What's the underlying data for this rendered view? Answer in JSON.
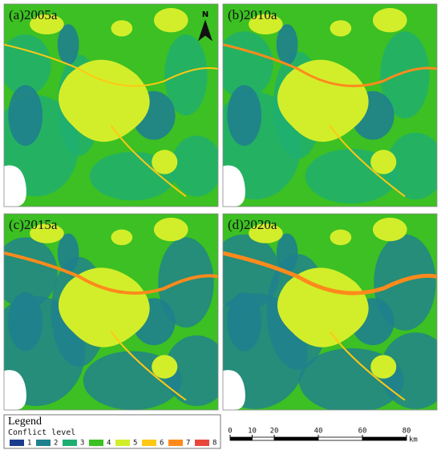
{
  "panels": [
    {
      "label": "(a)2005a"
    },
    {
      "label": "(b)2010a"
    },
    {
      "label": "(c)2015a"
    },
    {
      "label": "(d)2020a"
    }
  ],
  "north": "N",
  "legend": {
    "title": "Legend",
    "subtitle": "Conflict level",
    "items": [
      {
        "label": "1",
        "color": "#1b3b8c"
      },
      {
        "label": "2",
        "color": "#1f7f8e"
      },
      {
        "label": "3",
        "color": "#1eae72"
      },
      {
        "label": "4",
        "color": "#3cc023"
      },
      {
        "label": "5",
        "color": "#d2ee2a"
      },
      {
        "label": "6",
        "color": "#ffc814"
      },
      {
        "label": "7",
        "color": "#ff8a1c"
      },
      {
        "label": "8",
        "color": "#e8483a"
      }
    ]
  },
  "scale_bar": {
    "ticks": [
      0,
      10,
      20,
      40,
      60,
      80
    ],
    "unit": "km"
  }
}
